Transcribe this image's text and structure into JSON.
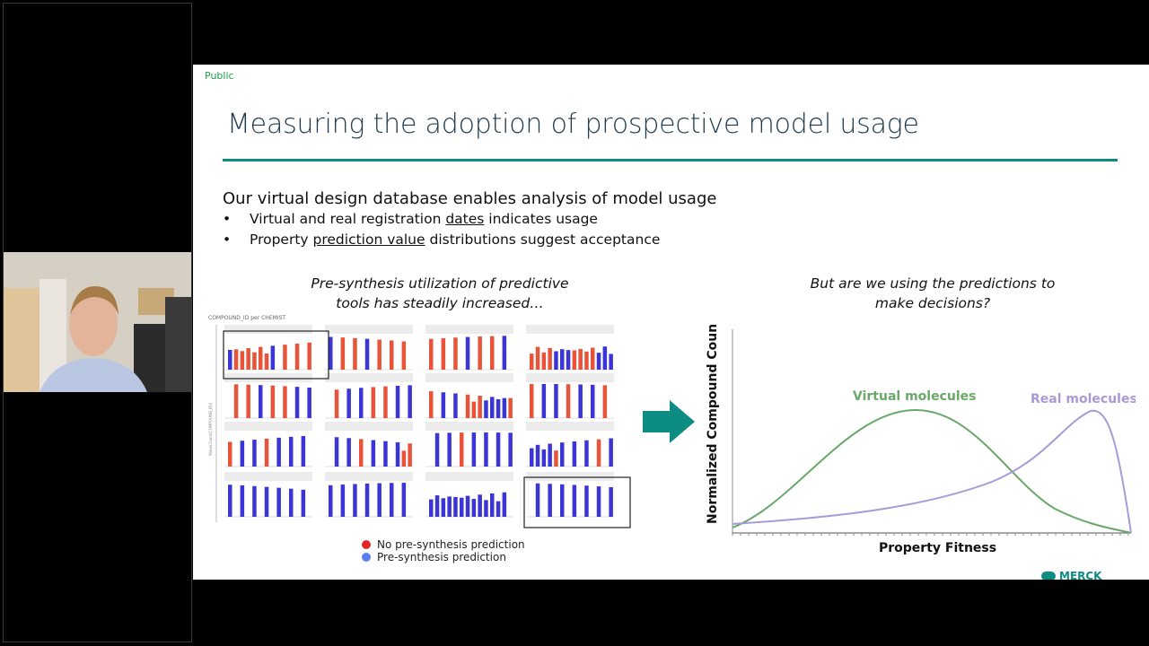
{
  "slide": {
    "classification": "Public",
    "title": "Measuring the adoption of prospective model usage",
    "lead": "Our virtual design database enables analysis of model usage",
    "bullets": [
      {
        "pre": "Virtual and real registration ",
        "link": "dates",
        "post": " indicates usage"
      },
      {
        "pre": "Property ",
        "link": "prediction value",
        "post": " distributions suggest acceptance"
      }
    ],
    "left_caption_line1": "Pre-synthesis utilization of predictive",
    "left_caption_line2": "tools has steadily increased…",
    "right_caption_line1": "But are we using the predictions to",
    "right_caption_line2": "make decisions?",
    "logo_text": "MERCK",
    "colors": {
      "accent": "#0d8c84",
      "red": "#e8543a",
      "blue": "#3b35d6",
      "green": "#6aa86a",
      "purple": "#a89ad8"
    }
  },
  "small_multiples": {
    "header_label": "COMPOUND_ID per CHEMIST",
    "y_axis_label": "Value(Count(COMPOUND_ID))",
    "legend": [
      {
        "label": "No pre-synthesis prediction",
        "color": "#e0262b"
      },
      {
        "label": "Pre-synthesis prediction",
        "color": "#5a7ff0"
      }
    ]
  },
  "chart_data": {
    "type": "line",
    "xlabel": "Property Fitness",
    "ylabel": "Normalized Compound Count",
    "series": [
      {
        "name": "Virtual molecules",
        "color": "#6aa86a"
      },
      {
        "name": "Real molecules",
        "color": "#a89ad8"
      }
    ]
  }
}
